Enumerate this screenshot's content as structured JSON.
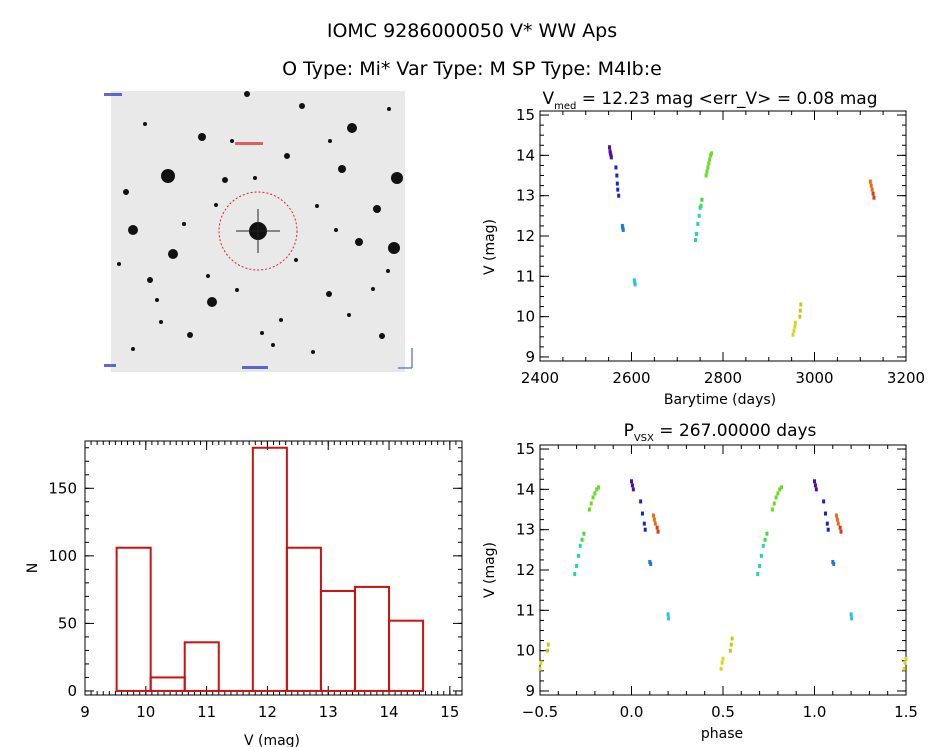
{
  "header": {
    "title_line1": "IOMC 9286000050    V* WW Aps",
    "title_line2": "O Type: Mi*  Var Type: M   SP Type: M4Ib:e"
  },
  "image_panel": {
    "kind": "finder-chart",
    "background": "grayscale sky image with stars",
    "target_circle_color": "#dd2222"
  },
  "chart_data": [
    {
      "type": "scatter",
      "panel": "light-curve",
      "title_parts": [
        "V",
        "med",
        " = 12.23 mag <err_V> = 0.08 mag"
      ],
      "xlabel": "Barytime (days)",
      "ylabel": "V (mag)",
      "xlim": [
        2400,
        3200
      ],
      "ylim": [
        15.1,
        8.9
      ],
      "y_inverted": true,
      "xticks": [
        "2400",
        "2600",
        "2800",
        "3000",
        "3200"
      ],
      "yticks": [
        "9",
        "10",
        "11",
        "12",
        "13",
        "14",
        "15"
      ],
      "series": [
        {
          "color": "#5a0a9a",
          "points": [
            [
              2552,
              14.2
            ],
            [
              2553,
              14.1
            ],
            [
              2554,
              14.05
            ],
            [
              2555,
              14.0
            ],
            [
              2556,
              13.95
            ]
          ]
        },
        {
          "color": "#1a22c8",
          "points": [
            [
              2566,
              13.7
            ],
            [
              2568,
              13.5
            ],
            [
              2569,
              13.3
            ],
            [
              2570,
              13.15
            ],
            [
              2572,
              13.0
            ]
          ]
        },
        {
          "color": "#1a7ad8",
          "points": [
            [
              2580,
              12.25
            ],
            [
              2581,
              12.2
            ],
            [
              2582,
              12.15
            ]
          ]
        },
        {
          "color": "#22c8d8",
          "points": [
            [
              2606,
              10.9
            ],
            [
              2607,
              10.85
            ],
            [
              2608,
              10.8
            ]
          ]
        },
        {
          "color": "#22d89a",
          "points": [
            [
              2740,
              11.9
            ],
            [
              2742,
              12.05
            ],
            [
              2745,
              12.3
            ],
            [
              2748,
              12.5
            ],
            [
              2750,
              12.7
            ]
          ]
        },
        {
          "color": "#44d844",
          "points": [
            [
              2752,
              12.75
            ],
            [
              2754,
              12.9
            ]
          ]
        },
        {
          "color": "#66dd22",
          "points": [
            [
              2763,
              13.5
            ],
            [
              2765,
              13.6
            ],
            [
              2767,
              13.7
            ],
            [
              2769,
              13.8
            ],
            [
              2771,
              13.9
            ],
            [
              2773,
              14.0
            ],
            [
              2775,
              14.05
            ]
          ]
        },
        {
          "color": "#d8d822",
          "points": [
            [
              2953,
              9.55
            ],
            [
              2955,
              9.65
            ],
            [
              2957,
              9.75
            ],
            [
              2958,
              9.85
            ]
          ]
        },
        {
          "color": "#c8c81a",
          "points": [
            [
              2968,
              10.0
            ],
            [
              2969,
              10.15
            ],
            [
              2970,
              10.3
            ]
          ]
        },
        {
          "color": "#e86a1a",
          "points": [
            [
              3122,
              13.35
            ],
            [
              3124,
              13.25
            ],
            [
              3126,
              13.15
            ]
          ]
        },
        {
          "color": "#d83a1a",
          "points": [
            [
              3128,
              13.05
            ],
            [
              3130,
              12.95
            ]
          ]
        }
      ]
    },
    {
      "type": "bar",
      "panel": "histogram",
      "xlabel": "V (mag)",
      "ylabel": "N",
      "xlim": [
        9,
        15.2
      ],
      "ylim": [
        -3,
        185
      ],
      "xticks": [
        "9",
        "10",
        "11",
        "12",
        "13",
        "14",
        "15"
      ],
      "yticks": [
        "0",
        "50",
        "100",
        "150"
      ],
      "color": "#cc1111",
      "bins": [
        {
          "x0": 9.52,
          "x1": 10.08,
          "value": 106
        },
        {
          "x0": 10.08,
          "x1": 10.64,
          "value": 10
        },
        {
          "x0": 10.64,
          "x1": 11.2,
          "value": 36
        },
        {
          "x0": 11.2,
          "x1": 11.76,
          "value": 0
        },
        {
          "x0": 11.76,
          "x1": 12.32,
          "value": 180
        },
        {
          "x0": 12.32,
          "x1": 12.88,
          "value": 106
        },
        {
          "x0": 12.88,
          "x1": 13.44,
          "value": 74
        },
        {
          "x0": 13.44,
          "x1": 14.0,
          "value": 77
        },
        {
          "x0": 14.0,
          "x1": 14.56,
          "value": 52
        }
      ]
    },
    {
      "type": "scatter",
      "panel": "phased-light-curve",
      "title_parts": [
        "P",
        "VSX",
        " = 267.00000 days"
      ],
      "xlabel": "phase",
      "ylabel": "V (mag)",
      "xlim": [
        -0.5,
        1.5
      ],
      "ylim": [
        15.1,
        8.9
      ],
      "y_inverted": true,
      "xticks": [
        "−0.5",
        "0.0",
        "0.5",
        "1.0",
        "1.5"
      ],
      "yticks": [
        "9",
        "10",
        "11",
        "12",
        "13",
        "14",
        "15"
      ],
      "series": [
        {
          "color": "#5a0a9a",
          "points": [
            [
              0.0,
              14.2
            ],
            [
              0.005,
              14.1
            ],
            [
              0.01,
              14.0
            ],
            [
              1.0,
              14.2
            ],
            [
              1.005,
              14.1
            ],
            [
              1.01,
              14.0
            ]
          ]
        },
        {
          "color": "#1a22c8",
          "points": [
            [
              0.05,
              13.7
            ],
            [
              0.06,
              13.4
            ],
            [
              0.07,
              13.15
            ],
            [
              0.075,
              13.0
            ],
            [
              1.05,
              13.7
            ],
            [
              1.06,
              13.4
            ],
            [
              1.07,
              13.15
            ],
            [
              1.075,
              13.0
            ]
          ]
        },
        {
          "color": "#1a7ad8",
          "points": [
            [
              0.1,
              12.2
            ],
            [
              0.105,
              12.15
            ],
            [
              1.1,
              12.2
            ],
            [
              1.105,
              12.15
            ]
          ]
        },
        {
          "color": "#22c8d8",
          "points": [
            [
              0.2,
              10.9
            ],
            [
              0.203,
              10.8
            ],
            [
              1.2,
              10.9
            ],
            [
              1.203,
              10.8
            ]
          ]
        },
        {
          "color": "#22d89a",
          "points": [
            [
              -0.31,
              11.9
            ],
            [
              -0.3,
              12.1
            ],
            [
              -0.29,
              12.35
            ],
            [
              -0.28,
              12.6
            ],
            [
              0.69,
              11.9
            ],
            [
              0.7,
              12.1
            ],
            [
              0.71,
              12.35
            ],
            [
              0.72,
              12.6
            ]
          ]
        },
        {
          "color": "#44d844",
          "points": [
            [
              -0.27,
              12.75
            ],
            [
              -0.26,
              12.9
            ],
            [
              0.73,
              12.75
            ],
            [
              0.74,
              12.9
            ]
          ]
        },
        {
          "color": "#66dd22",
          "points": [
            [
              -0.23,
              13.5
            ],
            [
              -0.22,
              13.65
            ],
            [
              -0.21,
              13.8
            ],
            [
              -0.2,
              13.9
            ],
            [
              -0.19,
              14.0
            ],
            [
              -0.18,
              14.05
            ],
            [
              0.77,
              13.5
            ],
            [
              0.78,
              13.65
            ],
            [
              0.79,
              13.8
            ],
            [
              0.8,
              13.9
            ],
            [
              0.81,
              14.0
            ],
            [
              0.82,
              14.05
            ]
          ]
        },
        {
          "color": "#d8d822",
          "points": [
            [
              -0.5,
              9.55
            ],
            [
              -0.495,
              9.7
            ],
            [
              0.49,
              9.55
            ],
            [
              0.495,
              9.7
            ],
            [
              0.5,
              9.8
            ],
            [
              1.49,
              9.55
            ],
            [
              1.495,
              9.7
            ],
            [
              1.5,
              9.8
            ]
          ]
        },
        {
          "color": "#c8c81a",
          "points": [
            [
              -0.46,
              10.0
            ],
            [
              -0.455,
              10.15
            ],
            [
              0.54,
              10.0
            ],
            [
              0.545,
              10.15
            ],
            [
              0.55,
              10.3
            ]
          ]
        },
        {
          "color": "#e86a1a",
          "points": [
            [
              0.12,
              13.35
            ],
            [
              0.125,
              13.25
            ],
            [
              0.13,
              13.15
            ],
            [
              1.12,
              13.35
            ],
            [
              1.125,
              13.25
            ],
            [
              1.13,
              13.15
            ]
          ]
        },
        {
          "color": "#d83a1a",
          "points": [
            [
              0.14,
              13.05
            ],
            [
              0.145,
              12.95
            ],
            [
              1.14,
              13.05
            ],
            [
              1.145,
              12.95
            ]
          ]
        }
      ]
    }
  ]
}
